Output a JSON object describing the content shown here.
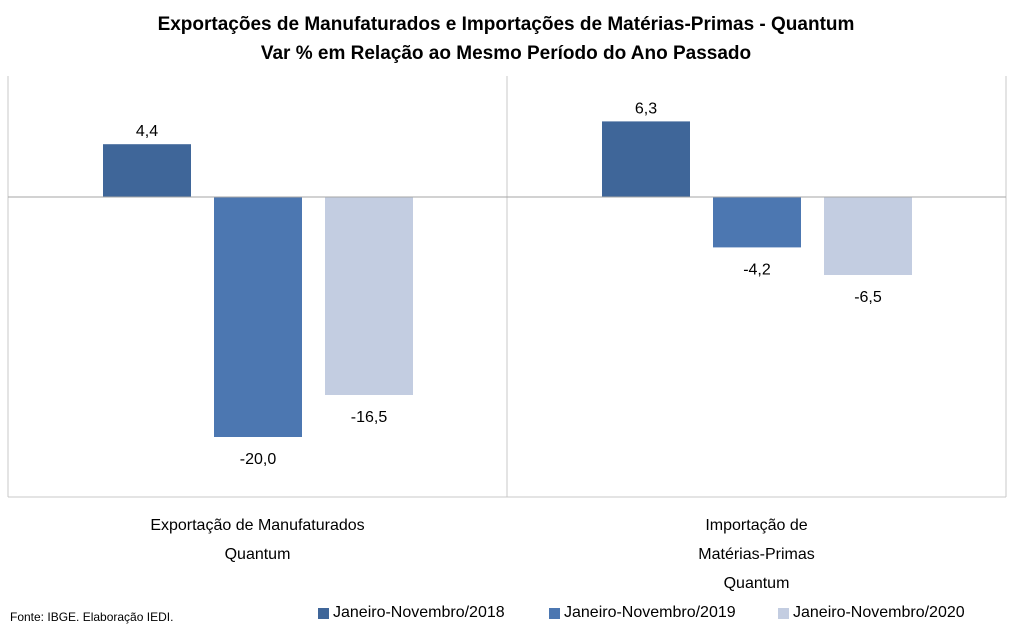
{
  "chart_data": {
    "type": "bar",
    "title": "Exportações de Manufaturados e Importações de Matérias-Primas - Quantum",
    "subtitle": "Var % em Relação ao Mesmo Período do Ano Passado",
    "categories": [
      [
        "Exportação de Manufaturados",
        "Quantum"
      ],
      [
        "Importação de",
        "Matérias-Primas",
        "Quantum"
      ]
    ],
    "series": [
      {
        "name": "Janeiro-Novembro/2018",
        "color": "#3f6699",
        "values": [
          4.4,
          6.3
        ],
        "labels": [
          "4,4",
          "6,3"
        ]
      },
      {
        "name": "Janeiro-Novembro/2019",
        "color": "#4c77b1",
        "values": [
          -20.0,
          -4.2
        ],
        "labels": [
          "-20,0",
          "-4,2"
        ]
      },
      {
        "name": "Janeiro-Novembro/2020",
        "color": "#c3cde1",
        "values": [
          -16.5,
          -6.5
        ],
        "labels": [
          "-16,5",
          "-6,5"
        ]
      }
    ],
    "grid": false,
    "legend_position": "bottom-right"
  },
  "source_note": "Fonte: IBGE. Elaboração IEDI."
}
